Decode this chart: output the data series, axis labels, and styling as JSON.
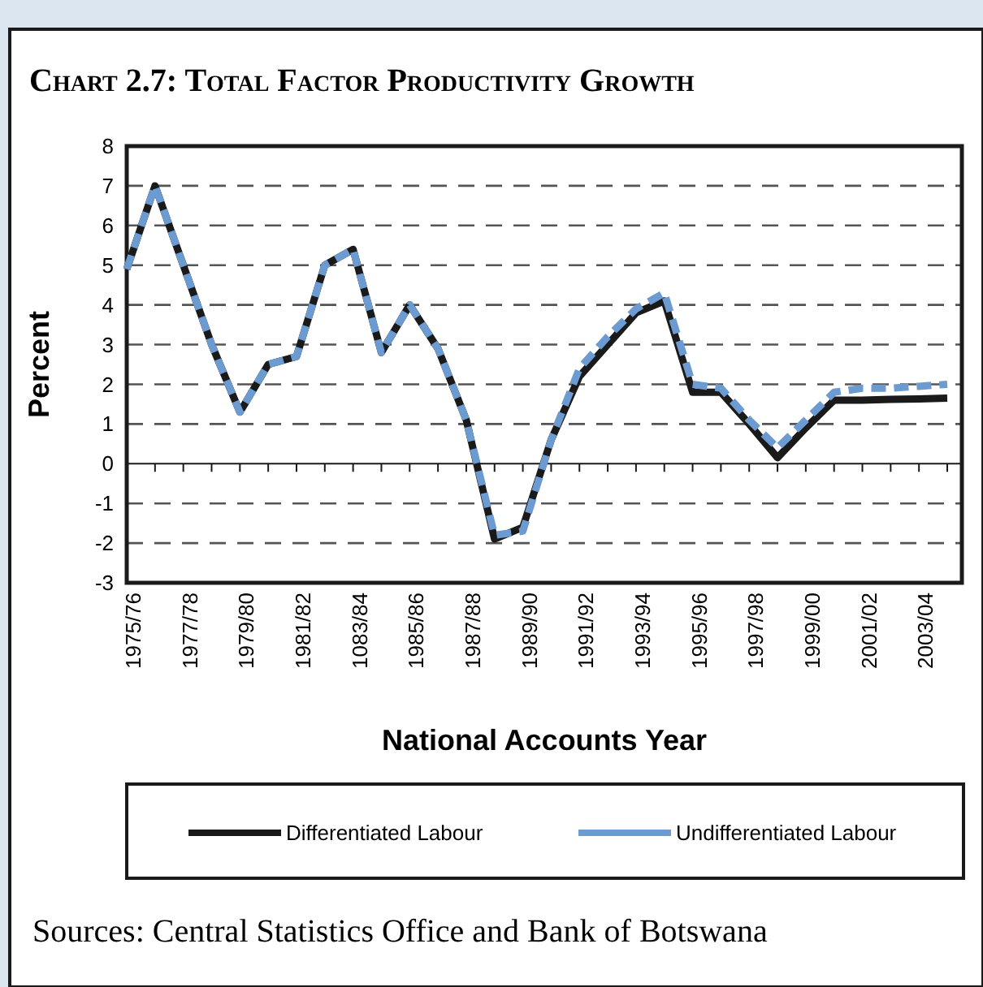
{
  "chart_data": {
    "type": "line",
    "title": "Chart 2.7: Total Factor Productivity Growth",
    "xlabel": "National Accounts Year",
    "ylabel": "Percent",
    "categories": [
      "1975/76",
      null,
      "1977/78",
      null,
      "1979/80",
      null,
      "1981/82",
      null,
      "1083/84",
      null,
      "1985/86",
      null,
      "1987/88",
      null,
      "1989/90",
      null,
      "1991/92",
      null,
      "1993/94",
      null,
      "1995/96",
      null,
      "1997/98",
      null,
      "1999/00",
      null,
      "2001/02",
      null,
      "2003/04",
      null
    ],
    "series": [
      {
        "name": "Differentiated Labour",
        "color": "#1a1a1a",
        "line_style": "solid",
        "values": [
          4.9,
          7.0,
          5.0,
          3.0,
          1.3,
          2.5,
          2.7,
          5.0,
          5.4,
          2.8,
          4.0,
          2.9,
          1.1,
          -1.9,
          -1.6,
          0.6,
          2.2,
          3.0,
          3.8,
          4.1,
          1.8,
          1.8,
          1.0,
          0.15,
          0.9,
          1.6,
          1.6,
          1.62,
          1.63,
          1.65
        ]
      },
      {
        "name": "Undifferentiated Labour",
        "color": "#6b9bd1",
        "line_style": "dashed",
        "values": [
          4.9,
          7.0,
          5.0,
          3.0,
          1.3,
          2.5,
          2.7,
          5.0,
          5.4,
          2.8,
          4.0,
          2.9,
          1.1,
          -1.8,
          -1.7,
          0.6,
          2.4,
          3.2,
          3.9,
          4.3,
          2.0,
          1.9,
          1.1,
          0.4,
          1.1,
          1.8,
          1.9,
          1.9,
          1.95,
          2.0
        ]
      }
    ],
    "ylim": [
      -3,
      8
    ],
    "yticks": [
      -3,
      -2,
      -1,
      0,
      1,
      2,
      3,
      4,
      5,
      6,
      7,
      8
    ],
    "grid": "y",
    "legend": "bottom",
    "marker": "none",
    "annotations": [
      "Sources: Central Statistics Office and Bank of Botswana"
    ]
  }
}
